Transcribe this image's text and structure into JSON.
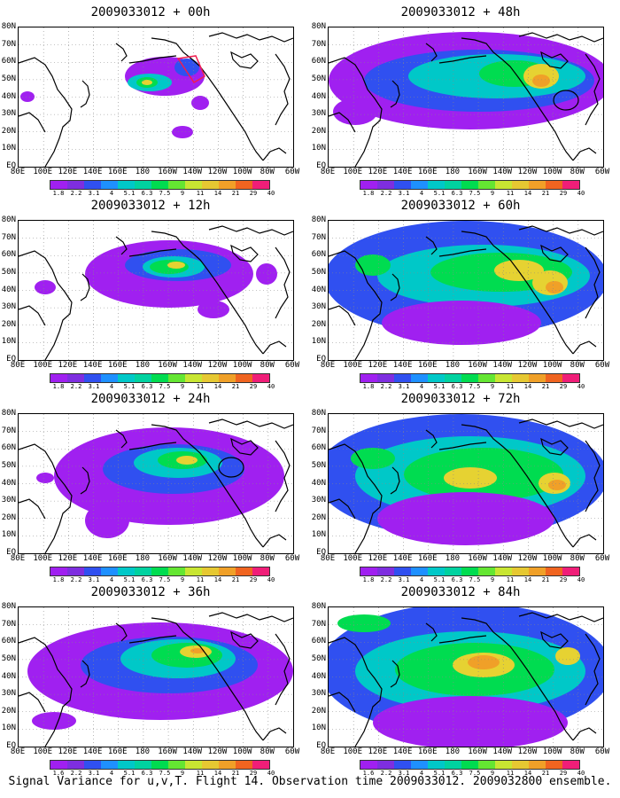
{
  "panels": [
    {
      "title": "2009033012 + 00h",
      "colorbar_labels": [
        "1.8",
        "2.2",
        "3.1",
        "4",
        "5.1",
        "6.3",
        "7.5",
        "9",
        "11",
        "14",
        "21",
        "29",
        "40"
      ]
    },
    {
      "title": "2009033012 + 48h",
      "colorbar_labels": [
        "1.8",
        "2.2",
        "3.1",
        "4",
        "5.1",
        "6.3",
        "7.5",
        "9",
        "11",
        "14",
        "21",
        "29",
        "40"
      ]
    },
    {
      "title": "2009033012 + 12h",
      "colorbar_labels": [
        "1.8",
        "2.2",
        "3.1",
        "4",
        "5.1",
        "6.3",
        "7.5",
        "9",
        "11",
        "14",
        "21",
        "29",
        "40"
      ]
    },
    {
      "title": "2009033012 + 60h",
      "colorbar_labels": [
        "1.8",
        "2.2",
        "3.1",
        "4",
        "5.1",
        "6.3",
        "7.5",
        "9",
        "11",
        "14",
        "21",
        "29",
        "40"
      ]
    },
    {
      "title": "2009033012 + 24h",
      "colorbar_labels": [
        "1.8",
        "2.2",
        "3.1",
        "4",
        "5.1",
        "6.3",
        "7.5",
        "9",
        "11",
        "14",
        "21",
        "29",
        "40"
      ]
    },
    {
      "title": "2009033012 + 72h",
      "colorbar_labels": [
        "1.8",
        "2.2",
        "3.1",
        "4",
        "5.1",
        "6.3",
        "7.5",
        "9",
        "11",
        "14",
        "21",
        "29",
        "40"
      ]
    },
    {
      "title": "2009033012 + 36h",
      "colorbar_labels": [
        "1.6",
        "2.2",
        "3.1",
        "4",
        "5.1",
        "6.3",
        "7.5",
        "9",
        "11",
        "14",
        "21",
        "29",
        "40"
      ]
    },
    {
      "title": "2009033012 + 84h",
      "colorbar_labels": [
        "1.6",
        "2.2",
        "3.1",
        "4",
        "5.1",
        "6.3",
        "7.5",
        "9",
        "11",
        "14",
        "21",
        "29",
        "40"
      ]
    }
  ],
  "lat_labels": [
    "80N",
    "70N",
    "60N",
    "50N",
    "40N",
    "30N",
    "20N",
    "10N",
    "EQ"
  ],
  "lon_labels": [
    "80E",
    "100E",
    "120E",
    "140E",
    "160E",
    "180",
    "160W",
    "140W",
    "120W",
    "100W",
    "80W",
    "60W"
  ],
  "colorbar_colors": [
    "#a020f0",
    "#7e2ee0",
    "#3050f0",
    "#1e90ff",
    "#00c8c8",
    "#00d2a0",
    "#00dc50",
    "#64e632",
    "#c8e632",
    "#e6c832",
    "#f0a028",
    "#f06420",
    "#f01e78"
  ],
  "caption": "Signal Variance for u,v,T. Flight 14. Observation time 2009033012. 2009032800 ensemble.",
  "map_colors": {
    "purple": "#a020f0",
    "blue": "#3050f0",
    "cyan": "#00c8c8",
    "green": "#00dc50",
    "yellow": "#e6d232",
    "orange": "#f0a028",
    "red": "#f01e50",
    "coast": "#000000",
    "grid": "#888888"
  }
}
